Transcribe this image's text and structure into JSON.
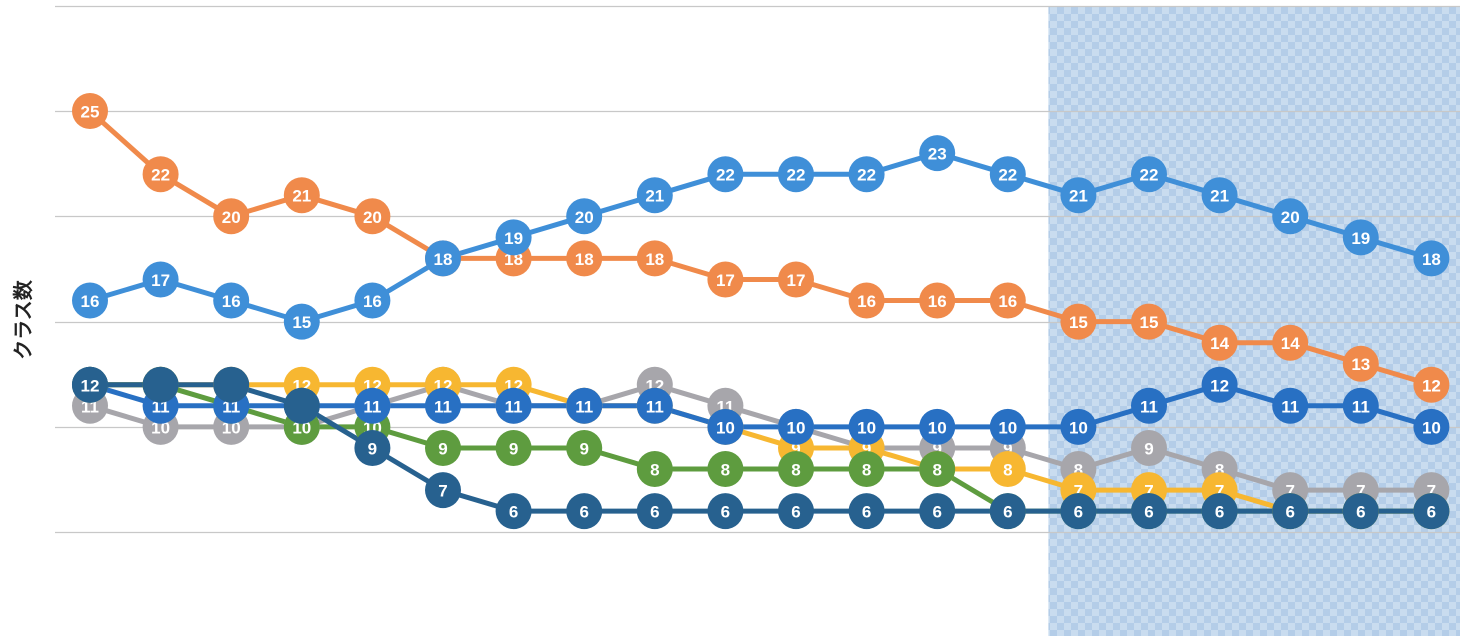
{
  "chart_data": {
    "type": "line",
    "ylabel": "クラス数",
    "ylim": [
      3,
      28
    ],
    "grid": true,
    "highlight_region": {
      "from_index": 14,
      "to_index": 19,
      "color": "#bcd4ec"
    },
    "x": [
      0,
      1,
      2,
      3,
      4,
      5,
      6,
      7,
      8,
      9,
      10,
      11,
      12,
      13,
      14,
      15,
      16,
      17,
      18,
      19
    ],
    "series": [
      {
        "color": "#f08a4b",
        "values": [
          25,
          22,
          20,
          21,
          20,
          18,
          18,
          18,
          18,
          17,
          17,
          16,
          16,
          16,
          15,
          15,
          14,
          14,
          13,
          12
        ]
      },
      {
        "color": "#3f8fd8",
        "values": [
          16,
          17,
          16,
          15,
          16,
          18,
          19,
          20,
          21,
          22,
          22,
          22,
          23,
          22,
          21,
          22,
          21,
          20,
          19,
          18
        ]
      },
      {
        "color": "#a7a6ab",
        "values": [
          11,
          10,
          10,
          10,
          11,
          12,
          11,
          11,
          12,
          11,
          10,
          9,
          9,
          9,
          8,
          9,
          8,
          7,
          7,
          7
        ]
      },
      {
        "color": "#f7b731",
        "values": [
          12,
          12,
          12,
          12,
          12,
          12,
          12,
          11,
          11,
          10,
          9,
          9,
          8,
          8,
          7,
          7,
          7,
          6,
          6,
          6
        ]
      },
      {
        "color": "#5e9c3f",
        "values": [
          12,
          12,
          11,
          10,
          10,
          9,
          9,
          9,
          8,
          8,
          8,
          8,
          8,
          6,
          6,
          6,
          6,
          6,
          6,
          6
        ]
      },
      {
        "color": "#2870c3",
        "values": [
          12,
          11,
          11,
          11,
          11,
          11,
          11,
          11,
          11,
          10,
          10,
          10,
          10,
          10,
          10,
          11,
          12,
          11,
          11,
          10
        ]
      },
      {
        "color": "#27618f",
        "values": [
          12,
          12,
          12,
          11,
          9,
          7,
          6,
          6,
          6,
          6,
          6,
          6,
          6,
          6,
          6,
          6,
          6,
          6,
          6,
          6
        ]
      }
    ],
    "label_hidden": [
      [],
      [],
      [],
      [],
      [
        13,
        14,
        15,
        16,
        17,
        18,
        19
      ],
      [],
      [
        1,
        2,
        3
      ]
    ]
  }
}
